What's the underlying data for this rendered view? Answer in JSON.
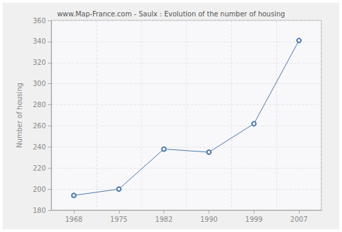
{
  "chart_data": {
    "type": "line",
    "title": "www.Map-France.com - Saulx : Evolution of the number of housing",
    "y_label": "Number of housing",
    "categories": [
      "1968",
      "1975",
      "1982",
      "1990",
      "1999",
      "2007"
    ],
    "values": [
      194,
      200,
      238,
      235,
      262,
      341
    ],
    "color": "#4a76a8",
    "marker": "circle",
    "line_style": "solid",
    "ylim": [
      180,
      360
    ],
    "yticks": [
      180,
      200,
      220,
      240,
      260,
      280,
      300,
      320,
      340,
      360
    ],
    "grid": true
  }
}
